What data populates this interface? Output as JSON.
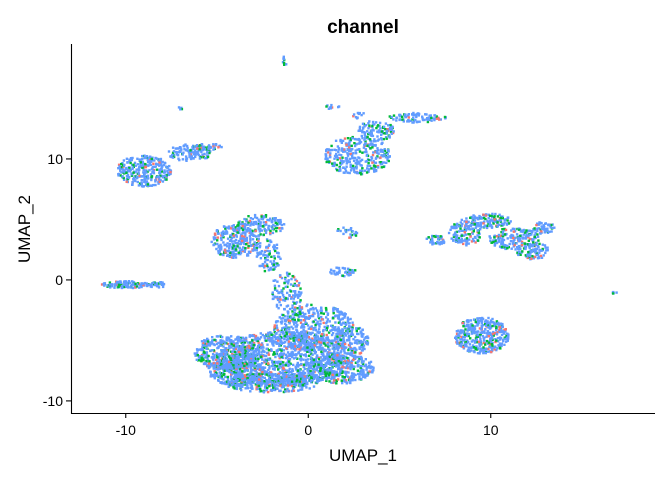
{
  "chart_data": {
    "type": "scatter",
    "title": "channel",
    "xlabel": "UMAP_1",
    "ylabel": "UMAP_2",
    "xlim": [
      -13,
      19
    ],
    "ylim": [
      -11,
      19.5
    ],
    "x_ticks": [
      -10,
      0,
      10
    ],
    "y_ticks": [
      -10,
      0,
      10
    ],
    "x_tick_labels": [
      "-10",
      "0",
      "10"
    ],
    "y_tick_labels": [
      "-10",
      "0",
      "10"
    ],
    "grid": false,
    "legend": "none",
    "colors": [
      "#619CFF",
      "#00BA38",
      "#F8766D"
    ],
    "color_weights": [
      0.78,
      0.16,
      0.06
    ],
    "clusters": [
      {
        "cx": -9.0,
        "cy": 9.0,
        "rx": 1.5,
        "ry": 1.3,
        "n": 300
      },
      {
        "cx": -6.5,
        "cy": 10.5,
        "rx": 1.2,
        "ry": 0.7,
        "n": 110
      },
      {
        "cx": -5.5,
        "cy": 11.0,
        "rx": 1.0,
        "ry": 0.25,
        "n": 40
      },
      {
        "cx": -7.0,
        "cy": 14.2,
        "rx": 0.12,
        "ry": 0.12,
        "n": 4
      },
      {
        "cx": -1.3,
        "cy": 18.0,
        "rx": 0.1,
        "ry": 0.5,
        "n": 8
      },
      {
        "cx": 2.7,
        "cy": 10.3,
        "rx": 1.8,
        "ry": 1.6,
        "n": 320
      },
      {
        "cx": 3.7,
        "cy": 12.3,
        "rx": 1.0,
        "ry": 0.9,
        "n": 110
      },
      {
        "cx": 6.0,
        "cy": 13.4,
        "rx": 1.6,
        "ry": 0.4,
        "n": 90
      },
      {
        "cx": 1.3,
        "cy": 14.3,
        "rx": 0.45,
        "ry": 0.2,
        "n": 10
      },
      {
        "cx": 2.7,
        "cy": 13.7,
        "rx": 0.35,
        "ry": 0.35,
        "n": 10
      },
      {
        "cx": -4.0,
        "cy": 3.2,
        "rx": 1.3,
        "ry": 1.4,
        "n": 260
      },
      {
        "cx": -2.6,
        "cy": 4.5,
        "rx": 1.3,
        "ry": 0.9,
        "n": 140
      },
      {
        "cx": -2.2,
        "cy": 2.0,
        "rx": 0.7,
        "ry": 1.4,
        "n": 90
      },
      {
        "cx": -1.2,
        "cy": -1.0,
        "rx": 0.9,
        "ry": 1.6,
        "n": 110
      },
      {
        "cx": 2.3,
        "cy": 3.8,
        "rx": 0.4,
        "ry": 0.5,
        "n": 16
      },
      {
        "cx": 1.8,
        "cy": 4.2,
        "rx": 0.3,
        "ry": 0.2,
        "n": 8
      },
      {
        "cx": 1.9,
        "cy": 0.7,
        "rx": 0.7,
        "ry": 0.4,
        "n": 45
      },
      {
        "cx": -10.0,
        "cy": -0.4,
        "rx": 1.3,
        "ry": 0.3,
        "n": 110
      },
      {
        "cx": -8.3,
        "cy": -0.4,
        "rx": 0.5,
        "ry": 0.25,
        "n": 30
      },
      {
        "cx": -4.5,
        "cy": -6.0,
        "rx": 1.8,
        "ry": 1.4,
        "n": 380
      },
      {
        "cx": -1.3,
        "cy": -6.5,
        "rx": 3.5,
        "ry": 2.3,
        "n": 1100
      },
      {
        "cx": 0.3,
        "cy": -4.0,
        "rx": 2.2,
        "ry": 2.0,
        "n": 500
      },
      {
        "cx": -2.0,
        "cy": -8.5,
        "rx": 2.6,
        "ry": 0.8,
        "n": 360
      },
      {
        "cx": 1.8,
        "cy": -7.3,
        "rx": 1.8,
        "ry": 1.3,
        "n": 330
      },
      {
        "cx": -4.0,
        "cy": -7.5,
        "rx": 1.5,
        "ry": 1.2,
        "n": 300
      },
      {
        "cx": 2.5,
        "cy": -5.0,
        "rx": 0.8,
        "ry": 1.2,
        "n": 120
      },
      {
        "cx": 8.6,
        "cy": 3.9,
        "rx": 0.9,
        "ry": 1.1,
        "n": 130
      },
      {
        "cx": 9.8,
        "cy": 4.9,
        "rx": 1.3,
        "ry": 0.6,
        "n": 120
      },
      {
        "cx": 11.3,
        "cy": 3.4,
        "rx": 1.4,
        "ry": 0.9,
        "n": 180
      },
      {
        "cx": 12.3,
        "cy": 2.4,
        "rx": 0.9,
        "ry": 0.7,
        "n": 90
      },
      {
        "cx": 12.9,
        "cy": 4.3,
        "rx": 0.6,
        "ry": 0.5,
        "n": 50
      },
      {
        "cx": 7.0,
        "cy": 3.3,
        "rx": 0.55,
        "ry": 0.4,
        "n": 40
      },
      {
        "cx": 9.5,
        "cy": -4.6,
        "rx": 1.5,
        "ry": 1.5,
        "n": 380
      },
      {
        "cx": 16.8,
        "cy": -1.1,
        "rx": 0.15,
        "ry": 0.12,
        "n": 5
      }
    ]
  }
}
